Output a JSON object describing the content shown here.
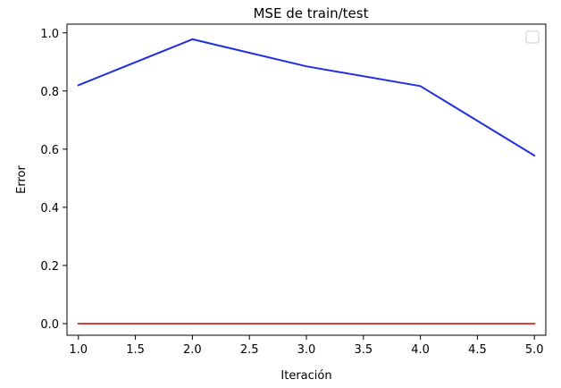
{
  "chart_data": {
    "type": "line",
    "title": "MSE de train/test",
    "xlabel": "Iteración",
    "ylabel": "Error",
    "xlim": [
      0.9,
      5.1
    ],
    "ylim": [
      -0.04,
      1.03
    ],
    "xticks": [
      1.0,
      1.5,
      2.0,
      2.5,
      3.0,
      3.5,
      4.0,
      4.5,
      5.0
    ],
    "xtick_labels": [
      "1.0",
      "1.5",
      "2.0",
      "2.5",
      "3.0",
      "3.5",
      "4.0",
      "4.5",
      "5.0"
    ],
    "yticks": [
      0.0,
      0.2,
      0.4,
      0.6,
      0.8,
      1.0
    ],
    "ytick_labels": [
      "0.0",
      "0.2",
      "0.4",
      "0.6",
      "0.8",
      "1.0"
    ],
    "grid": false,
    "legend": {
      "placement": "top-right",
      "entries": []
    },
    "x": [
      1,
      2,
      3,
      4,
      5
    ],
    "series": [
      {
        "values": [
          0.82,
          0.978,
          0.885,
          0.817,
          0.578
        ],
        "color": "#1f2fe8"
      },
      {
        "values": [
          0.0,
          0.0,
          0.0,
          0.0,
          0.0
        ],
        "color": "#e0403a"
      }
    ]
  }
}
